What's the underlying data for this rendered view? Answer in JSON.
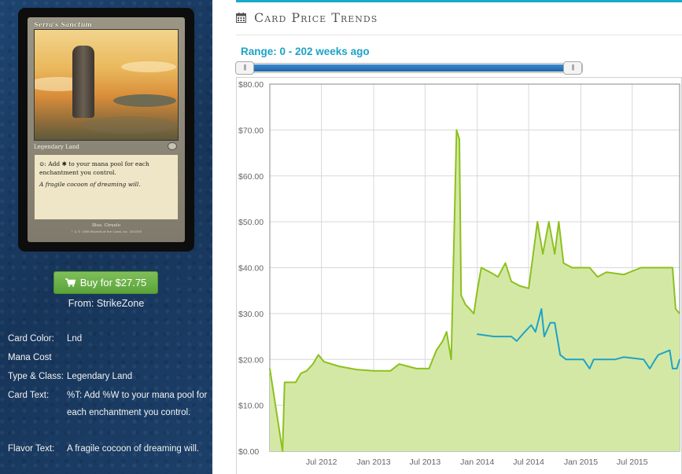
{
  "card": {
    "name": "Serra's Sanctum",
    "type_line": "Legendary Land",
    "rules_text": "⊙: Add ✱ to your mana pool for each enchantment you control.",
    "flavor_text": "A fragile cocoon of dreaming will.",
    "illustrator": "Illus. Ciruelo",
    "copyright": "™ & © 1998 Wizards of the Coast, Inc. 325/350"
  },
  "buy": {
    "label": "Buy for $27.75",
    "from": "From: StrikeZone"
  },
  "details": [
    {
      "label": "Card Color:",
      "value": "Lnd"
    },
    {
      "label": "Mana Cost",
      "value": ""
    },
    {
      "label": "Type & Class:",
      "value": "Legendary Land"
    },
    {
      "label": "Card Text:",
      "value": "%T: Add %W to your mana pool for each enchantment you control."
    },
    {
      "label": "Flavor Text:",
      "value": "A fragile cocoon of dreaming will."
    }
  ],
  "panel": {
    "title": "Card Price Trends",
    "range_label": "Range: 0 - 202 weeks ago"
  },
  "icons": {
    "calendar": "calendar-icon",
    "cart": "shopping-cart-icon"
  },
  "colors": {
    "accent": "#1aa9c9",
    "buy_button": "#6bb04a",
    "series_high": "#8cc11e",
    "series_fill": "#d4e8a6",
    "series_low": "#1ea3c6"
  },
  "chart_data": {
    "type": "line",
    "x_tick_labels": [
      "Jul 2012",
      "Jan 2013",
      "Jul 2013",
      "Jan 2014",
      "Jul 2014",
      "Jan 2015",
      "Jul 2015"
    ],
    "y_tick_labels": [
      "$0.00",
      "$10.00",
      "$20.00",
      "$30.00",
      "$40.00",
      "$50.00",
      "$60.00",
      "$70.00",
      "$80.00"
    ],
    "ylim": [
      0,
      80
    ],
    "xlim": [
      "2012-01-01",
      "2015-12-15"
    ],
    "grid": true,
    "series": [
      {
        "style": "area",
        "color": "#8cc11e",
        "points": [
          [
            "2012-01-01",
            18.0
          ],
          [
            "2012-02-15",
            0.0
          ],
          [
            "2012-02-22",
            15.0
          ],
          [
            "2012-04-01",
            15.0
          ],
          [
            "2012-04-20",
            17.0
          ],
          [
            "2012-05-10",
            17.5
          ],
          [
            "2012-06-01",
            19.0
          ],
          [
            "2012-06-20",
            21.0
          ],
          [
            "2012-07-10",
            19.5
          ],
          [
            "2012-09-01",
            18.5
          ],
          [
            "2012-11-01",
            17.8
          ],
          [
            "2013-01-01",
            17.5
          ],
          [
            "2013-03-01",
            17.5
          ],
          [
            "2013-04-01",
            19.0
          ],
          [
            "2013-05-01",
            18.5
          ],
          [
            "2013-06-01",
            18.0
          ],
          [
            "2013-07-15",
            18.0
          ],
          [
            "2013-08-10",
            22.0
          ],
          [
            "2013-09-01",
            24.0
          ],
          [
            "2013-09-15",
            26.0
          ],
          [
            "2013-10-01",
            20.0
          ],
          [
            "2013-10-20",
            70.0
          ],
          [
            "2013-10-30",
            68.0
          ],
          [
            "2013-11-05",
            34.0
          ],
          [
            "2013-11-20",
            32.0
          ],
          [
            "2013-12-20",
            30.0
          ],
          [
            "2014-01-01",
            35.0
          ],
          [
            "2014-01-15",
            40.0
          ],
          [
            "2014-02-15",
            39.0
          ],
          [
            "2014-03-15",
            38.0
          ],
          [
            "2014-04-10",
            41.0
          ],
          [
            "2014-05-01",
            37.0
          ],
          [
            "2014-06-01",
            36.0
          ],
          [
            "2014-07-01",
            35.5
          ],
          [
            "2014-08-01",
            50.0
          ],
          [
            "2014-08-20",
            43.0
          ],
          [
            "2014-09-10",
            50.0
          ],
          [
            "2014-10-01",
            43.0
          ],
          [
            "2014-10-15",
            50.0
          ],
          [
            "2014-11-01",
            41.0
          ],
          [
            "2014-12-01",
            40.0
          ],
          [
            "2015-02-01",
            40.0
          ],
          [
            "2015-03-01",
            38.0
          ],
          [
            "2015-04-01",
            39.0
          ],
          [
            "2015-06-01",
            38.5
          ],
          [
            "2015-08-01",
            40.0
          ],
          [
            "2015-10-01",
            40.0
          ],
          [
            "2015-11-20",
            40.0
          ],
          [
            "2015-12-01",
            31.0
          ],
          [
            "2015-12-15",
            30.0
          ]
        ]
      },
      {
        "style": "line",
        "color": "#1ea3c6",
        "points": [
          [
            "2014-01-01",
            25.5
          ],
          [
            "2014-03-01",
            25.0
          ],
          [
            "2014-05-01",
            25.0
          ],
          [
            "2014-05-20",
            24.0
          ],
          [
            "2014-06-10",
            25.5
          ],
          [
            "2014-07-10",
            27.5
          ],
          [
            "2014-07-25",
            26.0
          ],
          [
            "2014-08-15",
            31.0
          ],
          [
            "2014-08-25",
            25.0
          ],
          [
            "2014-09-15",
            28.0
          ],
          [
            "2014-10-01",
            28.0
          ],
          [
            "2014-10-20",
            21.0
          ],
          [
            "2014-11-10",
            20.0
          ],
          [
            "2014-12-20",
            20.0
          ],
          [
            "2015-01-10",
            20.0
          ],
          [
            "2015-02-01",
            18.0
          ],
          [
            "2015-02-15",
            20.0
          ],
          [
            "2015-05-01",
            20.0
          ],
          [
            "2015-06-01",
            20.5
          ],
          [
            "2015-08-10",
            20.0
          ],
          [
            "2015-09-01",
            18.0
          ],
          [
            "2015-09-20",
            20.0
          ],
          [
            "2015-10-01",
            21.0
          ],
          [
            "2015-11-10",
            22.0
          ],
          [
            "2015-11-20",
            18.0
          ],
          [
            "2015-12-05",
            18.0
          ],
          [
            "2015-12-15",
            20.0
          ]
        ]
      }
    ]
  }
}
